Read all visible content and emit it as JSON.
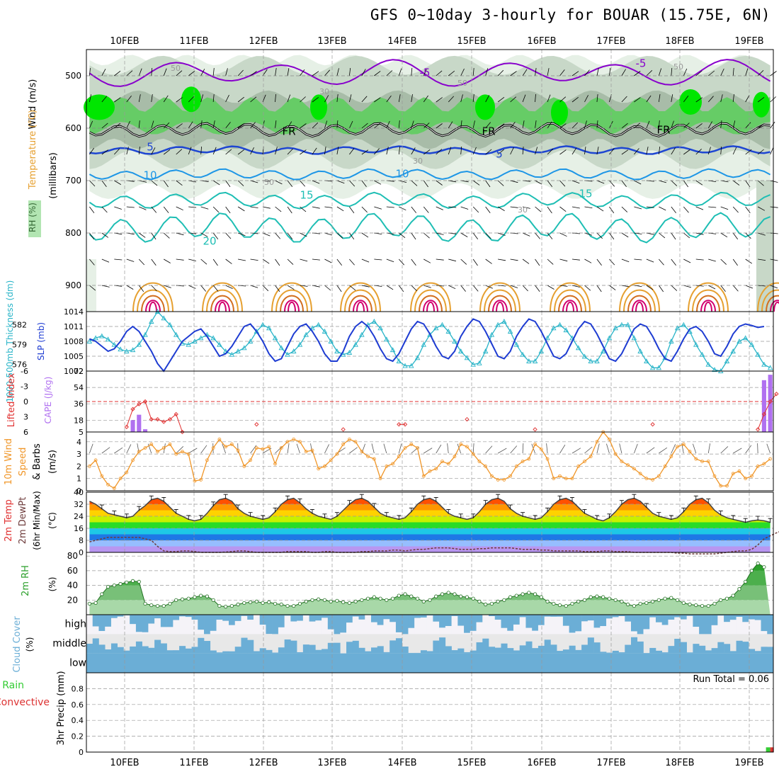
{
  "title": "GFS 0~10day 3-hourly for BOUAR (15.75E, 6N)",
  "dates": [
    "10FEB",
    "11FEB",
    "12FEB",
    "13FEB",
    "14FEB",
    "15FEB",
    "16FEB",
    "17FEB",
    "18FEB",
    "19FEB"
  ],
  "colors": {
    "rh_light": "#e6f0e6",
    "rh_mid": "#c8d8c8",
    "rh_dark": "#a8bca8",
    "rh_green": "#66cc66",
    "rh_bright": "#00e600",
    "purple": "#8800cc",
    "blue": "#1e46d2",
    "lightblue": "#1e96e6",
    "teal": "#1ebeb4",
    "orange": "#e6a030",
    "darkorange": "#d26e1e",
    "magenta": "#d2006e",
    "slp": "#1e3cd2",
    "thick": "#28b4c8",
    "li": "#e03030",
    "cape": "#b070f0",
    "wind": "#f09628",
    "temp": "#444444",
    "cloud": "#6baed6",
    "cloud_bg": "#e8e8e8",
    "rh2m": "#2ca02c",
    "precip_total": "#33cc33",
    "precip_conv": "#dd3333"
  },
  "panels": {
    "upper": {
      "ylabel_rh": "RH (%)",
      "ylabel_temp": "Temperature (°C)",
      "ylabel_wind": "Wind (m/s)",
      "ylabel_mb": "(millibars)",
      "yticks": [
        "500",
        "600",
        "700",
        "800",
        "900"
      ],
      "contour_labels": [
        "-5",
        "-5",
        "5",
        "5",
        "10",
        "10",
        "15",
        "15",
        "20",
        "FR",
        "FR",
        "FR",
        "50",
        "30",
        "50",
        "50",
        "30",
        "50",
        "30"
      ]
    },
    "slp": {
      "ylabel_thick": "1000-500mb Thickness (dm)",
      "ylabel_slp": "SLP (mb)",
      "left_ticks": [
        "582",
        "579",
        "576"
      ],
      "right_ticks": [
        "1014",
        "1011",
        "1008",
        "1005",
        "1002"
      ]
    },
    "cape": {
      "ylabel_li": "Lifted Index",
      "ylabel_cape": "CAPE (J/kg)",
      "left_ticks": [
        "-6",
        "-3",
        "0",
        "3",
        "6"
      ],
      "right_ticks": [
        "72",
        "54",
        "36",
        "18",
        "5"
      ]
    },
    "wind": {
      "ylabel": "10m Wind Speed & Barbs (m/s)",
      "ylabel_a": "10m Wind",
      "ylabel_b": "Speed",
      "ylabel_c": "& Barbs",
      "ylabel_unit": "(m/s)",
      "ticks": [
        "4",
        "3",
        "2",
        "1",
        "0"
      ]
    },
    "temp": {
      "ylabel_a": "2m Temp",
      "ylabel_b": "2m DewPt",
      "ylabel_c": "(6hr Min/Max)",
      "ylabel_unit": "(°C)",
      "ticks": [
        "40",
        "32",
        "24",
        "16",
        "8",
        "0"
      ]
    },
    "rh": {
      "ylabel": "2m RH",
      "ylabel_unit": "(%)",
      "ticks": [
        "80",
        "60",
        "40",
        "20"
      ]
    },
    "cloud": {
      "ylabel": "Cloud Cover",
      "ylabel_unit": "(%)",
      "levels": [
        "high",
        "middle",
        "low"
      ]
    },
    "precip": {
      "ylabel_a": "Total / Rain",
      "ylabel_b": "Convective",
      "ylabel_unit": "3hr Precip (mm)",
      "ticks": [
        "0.8",
        "0.6",
        "0.4",
        "0.2",
        "0"
      ],
      "run_total": "Run Total = 0.06"
    }
  },
  "chart_data": [
    {
      "type": "line",
      "name_left": "1000-500mb Thickness (dm)",
      "name_right": "SLP (mb)",
      "x_unit": "3-hourly steps from 09FEB 12Z",
      "ylim_thickness": [
        575,
        584
      ],
      "ylim_slp": [
        1002,
        1014
      ],
      "thickness": [
        579.5,
        580,
        580.3,
        579.8,
        579,
        578.3,
        578,
        578.2,
        579,
        580.5,
        582.5,
        584,
        583,
        582,
        580.5,
        579.2,
        579,
        579.5,
        580,
        580.5,
        580,
        579,
        578,
        577.5,
        578,
        578.5,
        579.5,
        581,
        582,
        581.5,
        580,
        578.5,
        577.5,
        578,
        579,
        580.5,
        581.5,
        582,
        581,
        579.5,
        578,
        577.5,
        577.8,
        579,
        580.5,
        582,
        582.5,
        581.5,
        579.8,
        578.2,
        576.5,
        575.8,
        575.8,
        577,
        579,
        580.5,
        581.5,
        582,
        581,
        579.5,
        578,
        577,
        576,
        576.2,
        578,
        580.5,
        582,
        582.5,
        581,
        579,
        577.5,
        576.5,
        576.5,
        578,
        580,
        581.5,
        582,
        581.2,
        580,
        578.5,
        577.2,
        576.5,
        576.5,
        578,
        580,
        581.5,
        582,
        582,
        580,
        578,
        576.5,
        575.5,
        575.5,
        577,
        579.5,
        581.5,
        582,
        581,
        579,
        577.5,
        576,
        575.2,
        575,
        576.5,
        578,
        579.5,
        580,
        579,
        577.5,
        576,
        575.5
      ],
      "slp": [
        1008.5,
        1008,
        1007,
        1006,
        1006.5,
        1008,
        1010,
        1011,
        1010,
        1008,
        1006,
        1003.5,
        1002,
        1004,
        1006,
        1008,
        1009,
        1010,
        1010.5,
        1009,
        1007,
        1005,
        1005.5,
        1007,
        1009,
        1011,
        1011.5,
        1010,
        1008,
        1005.5,
        1004,
        1004.5,
        1007,
        1009.5,
        1011,
        1011.5,
        1010,
        1008,
        1005.5,
        1004,
        1004,
        1006,
        1009,
        1011,
        1012,
        1011,
        1009,
        1006.5,
        1004.5,
        1004,
        1005.5,
        1008,
        1010.5,
        1012,
        1011.5,
        1009.5,
        1007,
        1005,
        1004.5,
        1006,
        1009,
        1011,
        1012.5,
        1012,
        1010,
        1007.5,
        1005,
        1004.5,
        1006,
        1009,
        1011,
        1012.5,
        1012,
        1010,
        1007.5,
        1005,
        1004.5,
        1005.5,
        1008,
        1010.5,
        1012,
        1011.5,
        1009.5,
        1007,
        1004.5,
        1004,
        1005.5,
        1008,
        1010.5,
        1011.5,
        1011,
        1009,
        1006.5,
        1004.5,
        1004,
        1006,
        1008.5,
        1010.5,
        1011,
        1010,
        1008,
        1005.5,
        1005,
        1007,
        1009.5,
        1011,
        1011.5,
        1011.2,
        1010.8,
        1011
      ]
    },
    {
      "type": "bar",
      "name": "CAPE (J/kg)",
      "ylim": [
        5,
        72
      ],
      "bars": [
        {
          "i": 7,
          "v": 18
        },
        {
          "i": 8,
          "v": 24
        },
        {
          "i": 9,
          "v": 8
        },
        {
          "i": 109,
          "v": 62
        },
        {
          "i": 110,
          "v": 68
        }
      ],
      "lifted_index_line": {
        "name": "Lifted Index",
        "ylim": [
          -6,
          6
        ],
        "points": [
          {
            "i": 6,
            "v": 5
          },
          {
            "i": 7,
            "v": 1.5
          },
          {
            "i": 8,
            "v": 0.5
          },
          {
            "i": 9,
            "v": 0
          },
          {
            "i": 10,
            "v": 3.5
          },
          {
            "i": 11,
            "v": 3.5
          },
          {
            "i": 12,
            "v": 4
          },
          {
            "i": 13,
            "v": 3.5
          },
          {
            "i": 14,
            "v": 2.5
          },
          {
            "i": 15,
            "v": 6
          },
          {
            "i": 27,
            "v": 4.5
          },
          {
            "i": 41,
            "v": 5.5
          },
          {
            "i": 50,
            "v": 4.5
          },
          {
            "i": 51,
            "v": 4.5
          },
          {
            "i": 61,
            "v": 3.5
          },
          {
            "i": 72,
            "v": 5.5
          },
          {
            "i": 91,
            "v": 4.5
          },
          {
            "i": 108,
            "v": 5.5
          },
          {
            "i": 109,
            "v": 2.5
          },
          {
            "i": 110,
            "v": 0
          },
          {
            "i": 111,
            "v": -1.5
          }
        ]
      }
    },
    {
      "type": "line",
      "name": "10m Wind Speed (m/s)",
      "ylim": [
        0,
        4.8
      ],
      "values": [
        2,
        2.5,
        1.2,
        0.5,
        0.2,
        1,
        1.5,
        2.5,
        3.2,
        3.5,
        3.8,
        3.2,
        3.5,
        3.8,
        3,
        3.2,
        3,
        0.8,
        0.9,
        2.5,
        3.5,
        4.2,
        3.6,
        3.8,
        3.3,
        2,
        2.5,
        3.5,
        3.4,
        3.6,
        2.2,
        3.5,
        4,
        4.2,
        4,
        3.2,
        3.3,
        1.8,
        2,
        2.5,
        3,
        3.8,
        4.2,
        4,
        3.2,
        2.8,
        2.6,
        1,
        2,
        2.2,
        2.8,
        3.5,
        3.8,
        3.5,
        1.2,
        1.6,
        1.8,
        2.4,
        2.2,
        2.8,
        3.8,
        3.6,
        3,
        2.4,
        2,
        1.2,
        0.9,
        0.9,
        1.2,
        2,
        2.4,
        2.6,
        3.8,
        3.4,
        2.6,
        1,
        1.2,
        1,
        1,
        2,
        2.4,
        2.8,
        4,
        4.8,
        4.2,
        3,
        2.4,
        2.1,
        1.8,
        1.4,
        1,
        0.9,
        1.2,
        2,
        2.8,
        3.6,
        3.8,
        3.2,
        2.6,
        2.4,
        2.4,
        1.2,
        0.4,
        0.4,
        1.4,
        1.6,
        1,
        1.2,
        2,
        2.2,
        2.6
      ]
    },
    {
      "type": "area",
      "name": "2m Temp (°C)",
      "ylim": [
        0,
        40
      ],
      "values": [
        34,
        32,
        29,
        26,
        25,
        24,
        23,
        24,
        28,
        31,
        35,
        36,
        34,
        30,
        26,
        24,
        22,
        21,
        22,
        26,
        31,
        35,
        36,
        34,
        29,
        26,
        24,
        23,
        22,
        23,
        27,
        32,
        35,
        36,
        33,
        29,
        26,
        24,
        23,
        22,
        24,
        28,
        32,
        35,
        36,
        34,
        30,
        26,
        24,
        23,
        22,
        23,
        27,
        32,
        35,
        36,
        34,
        30,
        26,
        24,
        23,
        22,
        23,
        27,
        32,
        35,
        36,
        34,
        29,
        26,
        24,
        23,
        22,
        23,
        27,
        32,
        35,
        36,
        34,
        30,
        26,
        24,
        22,
        21,
        23,
        27,
        32,
        35,
        36,
        34,
        30,
        26,
        24,
        23,
        22,
        23,
        27,
        32,
        35,
        36,
        33,
        28,
        25,
        23,
        22,
        21,
        20,
        21,
        21.5,
        21,
        20
      ],
      "dewpoint": [
        7,
        8,
        9,
        10,
        10,
        10,
        10,
        10,
        10,
        9,
        8,
        4,
        1,
        0.5,
        0.5,
        1,
        1,
        0.5,
        0,
        0,
        0,
        0,
        0.2,
        0.5,
        1,
        1,
        0.5,
        0,
        0,
        0,
        0,
        0,
        0.5,
        0.5,
        0.5,
        0.5,
        0,
        0,
        0.5,
        0.5,
        0,
        0,
        0,
        0,
        0.5,
        0.5,
        1,
        1,
        1,
        1.5,
        1.5,
        1,
        1.5,
        2,
        2,
        2.5,
        3,
        3,
        3,
        2.5,
        2,
        2,
        2,
        2.5,
        2.5,
        3,
        3,
        3,
        3,
        2.5,
        2,
        2,
        2,
        1.5,
        1.5,
        1,
        1,
        1,
        1,
        1,
        0.5,
        0.5,
        0.5,
        1,
        1,
        0.5,
        0.5,
        0.5,
        0,
        0,
        0,
        0,
        0,
        0,
        0,
        -0.5,
        -0.5,
        -1,
        -1,
        -1,
        -1,
        -1,
        -0.5,
        0,
        0.5,
        1,
        1,
        2,
        5,
        9,
        11,
        13,
        14.5
      ]
    },
    {
      "type": "area",
      "name": "2m RH (%)",
      "ylim": [
        0,
        85
      ],
      "values": [
        15,
        16,
        28,
        38,
        40,
        42,
        44,
        46,
        45,
        15,
        13,
        12,
        12,
        15,
        20,
        21,
        22,
        24,
        26,
        25,
        20,
        12,
        11,
        12,
        14,
        16,
        17,
        18,
        16,
        17,
        15,
        14,
        12,
        12,
        15,
        18,
        20,
        21,
        20,
        18,
        19,
        17,
        16,
        18,
        20,
        22,
        24,
        22,
        20,
        22,
        26,
        28,
        25,
        22,
        18,
        20,
        25,
        28,
        30,
        28,
        25,
        24,
        22,
        18,
        14,
        15,
        18,
        20,
        24,
        26,
        28,
        30,
        28,
        24,
        18,
        15,
        13,
        12,
        15,
        18,
        20,
        24,
        25,
        24,
        22,
        20,
        18,
        14,
        12,
        15,
        16,
        18,
        20,
        22,
        23,
        20,
        16,
        14,
        13,
        12,
        12,
        15,
        20,
        22,
        26,
        35,
        45,
        60,
        70,
        65
      ]
    },
    {
      "type": "heatmap",
      "name": "3hr Precip (mm)",
      "ylim": [
        0,
        1
      ],
      "total": [
        {
          "i": 110,
          "v": 0.06
        }
      ],
      "convective": [
        {
          "i": 110,
          "v": 0.06
        }
      ]
    }
  ]
}
